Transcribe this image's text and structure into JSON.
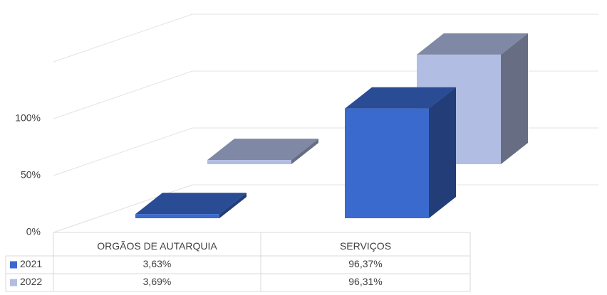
{
  "chart_data": {
    "type": "bar3d",
    "categories": [
      "ORGÃOS DE AUTARQUIA",
      "SERVIÇOS"
    ],
    "series": [
      {
        "name": "2021",
        "color": "#3b6acf",
        "values": [
          3.63,
          96.37
        ],
        "value_labels": [
          "3,63%",
          "96,37%"
        ]
      },
      {
        "name": "2022",
        "color": "#b1bde3",
        "values": [
          3.69,
          96.31
        ],
        "value_labels": [
          "3,69%",
          "96,31%"
        ]
      }
    ],
    "ylim": [
      0,
      150
    ],
    "yticks": [
      {
        "value": 0,
        "label": "0%"
      },
      {
        "value": 50,
        "label": "50%"
      },
      {
        "value": 100,
        "label": "100%"
      }
    ],
    "grid": true,
    "legend": "table"
  }
}
